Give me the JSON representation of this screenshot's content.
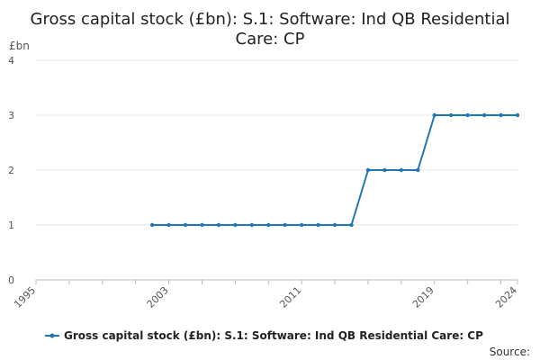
{
  "chart_data": {
    "type": "line",
    "title_lines": [
      "Gross capital stock (£bn): S.1: Software: Ind QB Residential",
      "Care: CP"
    ],
    "ylabel": "£bn",
    "xlabel": "",
    "xlim": [
      1995,
      2024
    ],
    "ylim": [
      0,
      4
    ],
    "y_ticks": [
      0,
      1,
      2,
      3,
      4
    ],
    "x_tick_labels": [
      1995,
      2003,
      2011,
      2019,
      2024
    ],
    "x_minor_ticks": [
      1995,
      1997,
      1999,
      2001,
      2003,
      2005,
      2007,
      2009,
      2011,
      2013,
      2015,
      2017,
      2019,
      2021,
      2023,
      2024
    ],
    "grid": true,
    "legend_position": "bottom",
    "colors": {
      "series": "#1f77b4",
      "grid": "#e6e6e6",
      "axis": "#bbbbbb"
    },
    "series": [
      {
        "name": "Gross capital stock (£bn): S.1: Software: Ind QB Residential Care: CP",
        "x": [
          2002,
          2003,
          2004,
          2005,
          2006,
          2007,
          2008,
          2009,
          2010,
          2011,
          2012,
          2013,
          2014,
          2015,
          2016,
          2017,
          2018,
          2019,
          2020,
          2021,
          2022,
          2023,
          2024
        ],
        "values": [
          1,
          1,
          1,
          1,
          1,
          1,
          1,
          1,
          1,
          1,
          1,
          1,
          1,
          2,
          2,
          2,
          2,
          3,
          3,
          3,
          3,
          3,
          3
        ]
      }
    ]
  },
  "source_label": "Source:"
}
